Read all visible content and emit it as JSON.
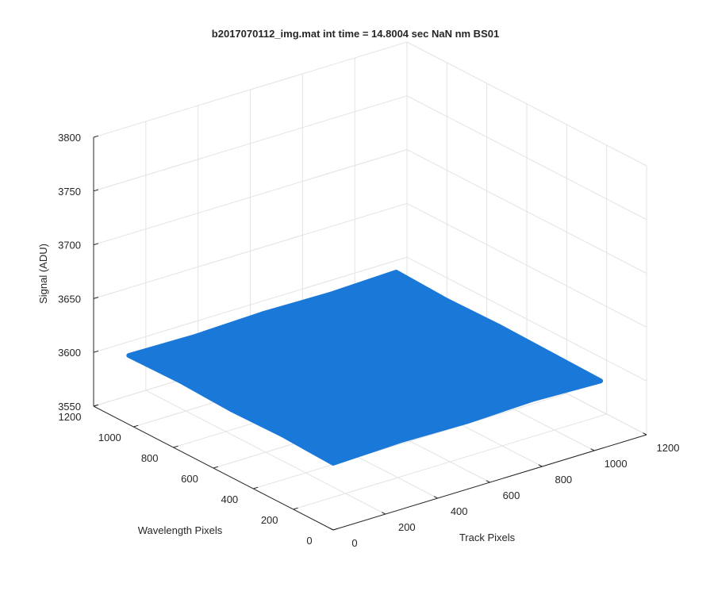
{
  "chart_data": {
    "type": "surface3d",
    "title": "b2017070112_img.mat int time = 14.8004 sec  NaN nm BS01",
    "xlabel": "Track Pixels",
    "ylabel": "Wavelength Pixels",
    "zlabel": "Signal (ADU)",
    "x": [
      0,
      256,
      512,
      768,
      1024
    ],
    "y": [
      0,
      256,
      512,
      768,
      1024
    ],
    "z": [
      [
        3612,
        3614,
        3613,
        3615,
        3613
      ],
      [
        3614,
        3613,
        3615,
        3614,
        3614
      ],
      [
        3613,
        3615,
        3614,
        3613,
        3615
      ],
      [
        3615,
        3614,
        3613,
        3615,
        3614
      ],
      [
        3614,
        3613,
        3615,
        3614,
        3616
      ]
    ],
    "color": "#1a78d8",
    "xlim": [
      0,
      1200
    ],
    "ylim": [
      0,
      1200
    ],
    "zlim": [
      3550,
      3800
    ],
    "xticks": [
      0,
      200,
      400,
      600,
      800,
      1000,
      1200
    ],
    "yticks": [
      0,
      200,
      400,
      600,
      800,
      1000,
      1200
    ],
    "zticks": [
      3550,
      3600,
      3650,
      3700,
      3750,
      3800
    ],
    "grid": true
  }
}
